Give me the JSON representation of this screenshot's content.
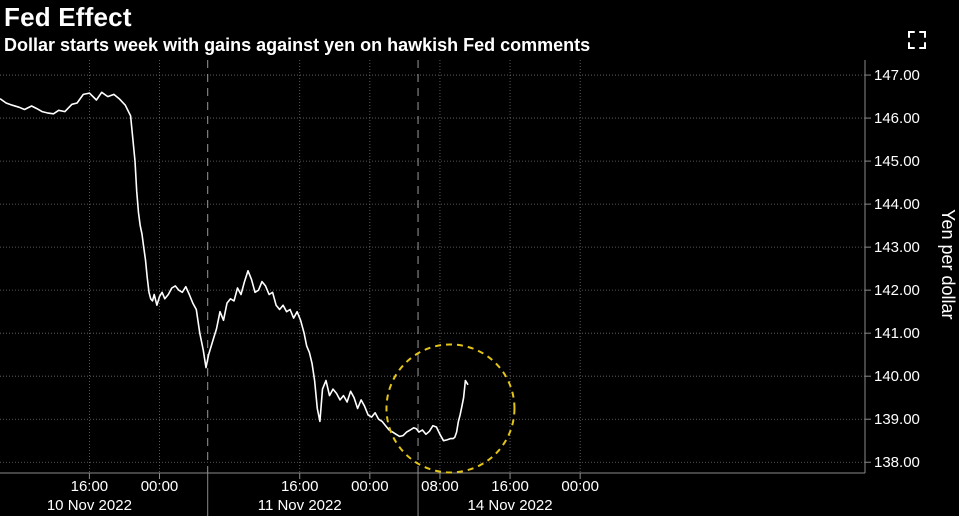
{
  "colors": {
    "background": "#000000",
    "line": "#ffffff",
    "grid": "#6e6e6e",
    "highlight": "#e3c51a"
  },
  "icons": {
    "expand": "expand-icon"
  },
  "chart_data": {
    "type": "line",
    "title": "Fed Effect",
    "subtitle": "Dollar starts week with gains against yen on hawkish Fed comments",
    "ylabel": "Yen per dollar",
    "ylim": [
      137.75,
      147.35
    ],
    "yticks": [
      147,
      146,
      145,
      144,
      143,
      142,
      141,
      140,
      139,
      138
    ],
    "ytick_labels": [
      "147.00",
      "146.00",
      "145.00",
      "144.00",
      "143.00",
      "142.00",
      "141.00",
      "140.00",
      "139.00",
      "138.00"
    ],
    "xaxis_unit": "hours since 10 Nov 2022 00:00",
    "xlim": [
      5.8,
      104.5
    ],
    "xticks": [
      {
        "x": 16,
        "label": "16:00"
      },
      {
        "x": 24,
        "label": "00:00"
      },
      {
        "x": 40,
        "label": "16:00"
      },
      {
        "x": 48,
        "label": "00:00"
      },
      {
        "x": 56,
        "label": "08:00"
      },
      {
        "x": 64,
        "label": "16:00"
      },
      {
        "x": 72,
        "label": "00:00"
      }
    ],
    "date_labels": [
      {
        "x": 16,
        "label": "10 Nov 2022"
      },
      {
        "x": 40,
        "label": "11 Nov 2022"
      },
      {
        "x": 64,
        "label": "14 Nov 2022"
      }
    ],
    "session_breaks": [
      29.5,
      53.5
    ],
    "grid": true,
    "annotation": {
      "type": "circle",
      "x": 57.2,
      "y": 139.25,
      "color": "#e3c51a",
      "style": "dashed"
    },
    "series": [
      {
        "x": [
          5.8,
          6.5,
          7.2,
          8.0,
          8.6,
          9.4,
          10.0,
          10.6,
          11.2,
          11.9,
          12.5,
          13.2,
          14.0,
          14.6,
          15.3,
          16.0,
          16.8,
          17.4,
          18.1,
          18.8,
          19.4,
          20.1,
          20.7,
          21.2,
          21.4,
          21.6,
          21.8,
          22.0,
          22.2,
          22.4,
          22.6,
          22.8,
          23.0,
          23.2,
          23.4,
          23.7,
          24.0,
          24.3,
          24.6,
          25.0,
          25.4,
          25.8,
          26.2,
          26.6,
          27.0,
          27.4,
          27.8,
          28.2,
          28.6,
          29.0,
          29.3,
          29.6,
          29.9,
          30.2,
          30.5,
          30.9,
          31.3,
          31.7,
          32.1,
          32.5,
          32.9,
          33.3,
          33.7,
          34.1,
          34.5,
          34.9,
          35.3,
          35.7,
          36.1,
          36.5,
          36.9,
          37.3,
          37.7,
          38.1,
          38.5,
          38.9,
          39.3,
          39.7,
          40.1,
          40.5,
          40.8,
          41.1,
          41.4,
          41.7,
          42.0,
          42.3,
          42.6,
          43.0,
          43.4,
          43.8,
          44.2,
          44.6,
          45.0,
          45.4,
          45.8,
          46.2,
          46.6,
          47.0,
          47.4,
          47.8,
          48.2,
          48.6,
          49.0,
          49.4,
          49.8,
          50.2,
          50.6,
          51.0,
          51.4,
          51.8,
          52.2,
          52.6,
          53.0,
          53.3,
          53.6,
          54.0,
          54.4,
          54.8,
          55.2,
          55.6,
          56.0,
          56.4,
          56.8,
          57.2,
          57.5,
          57.7,
          57.9,
          58.1,
          58.3,
          58.5,
          58.7,
          58.9,
          59.2
        ],
        "y": [
          146.45,
          146.35,
          146.3,
          146.25,
          146.2,
          146.28,
          146.22,
          146.15,
          146.12,
          146.1,
          146.18,
          146.15,
          146.32,
          146.35,
          146.55,
          146.58,
          146.42,
          146.6,
          146.5,
          146.55,
          146.45,
          146.3,
          146.05,
          145.0,
          144.3,
          143.8,
          143.5,
          143.3,
          143.0,
          142.7,
          142.3,
          141.95,
          141.8,
          141.75,
          141.9,
          141.65,
          141.85,
          141.95,
          141.8,
          141.9,
          142.05,
          142.1,
          142.0,
          141.95,
          142.08,
          141.9,
          141.7,
          141.55,
          141.0,
          140.6,
          140.2,
          140.5,
          140.7,
          140.9,
          141.1,
          141.5,
          141.3,
          141.7,
          141.8,
          141.75,
          142.05,
          141.9,
          142.2,
          142.45,
          142.25,
          141.95,
          142.0,
          142.2,
          142.1,
          141.9,
          141.95,
          141.65,
          141.55,
          141.65,
          141.5,
          141.55,
          141.35,
          141.5,
          141.3,
          141.0,
          140.7,
          140.55,
          140.3,
          139.9,
          139.25,
          138.95,
          139.7,
          139.9,
          139.55,
          139.7,
          139.6,
          139.45,
          139.55,
          139.4,
          139.65,
          139.5,
          139.25,
          139.45,
          139.3,
          139.1,
          139.05,
          139.15,
          139.0,
          138.95,
          138.85,
          138.75,
          138.7,
          138.65,
          138.6,
          138.62,
          138.7,
          138.75,
          138.8,
          138.78,
          138.7,
          138.75,
          138.65,
          138.72,
          138.85,
          138.82,
          138.65,
          138.5,
          138.52,
          138.55,
          138.55,
          138.58,
          138.7,
          138.95,
          139.1,
          139.3,
          139.5,
          139.9,
          139.8
        ]
      }
    ]
  }
}
